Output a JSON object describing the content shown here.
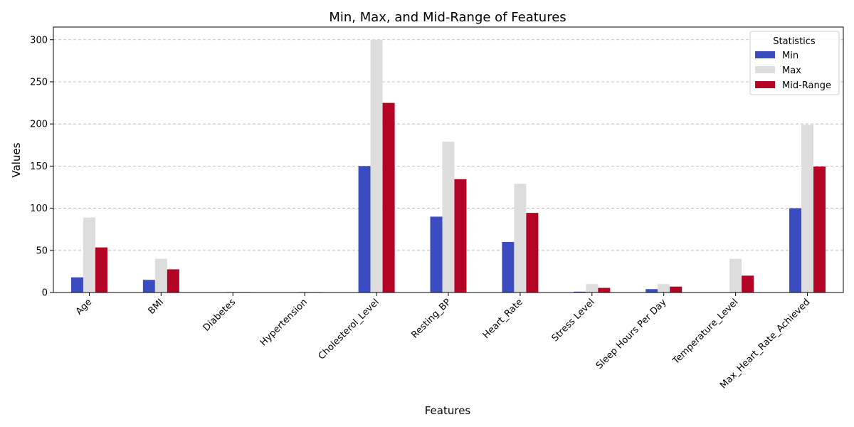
{
  "chart_data": {
    "type": "bar",
    "title": "Min, Max, and Mid-Range of Features",
    "xlabel": "Features",
    "ylabel": "Values",
    "ylim": [
      0,
      315
    ],
    "yticks": [
      0,
      50,
      100,
      150,
      200,
      250,
      300
    ],
    "grid": "horizontal dashed",
    "legend": {
      "title": "Statistics",
      "placement": "top-right"
    },
    "categories": [
      "Age",
      "BMI",
      "Diabetes",
      "Hypertension",
      "Cholesterol_Level",
      "Resting_BP",
      "Heart_Rate",
      "Stress Level",
      "Sleep Hours Per Day",
      "Temperature_Level",
      "Max_Heart_Rate_Achieved"
    ],
    "series": [
      {
        "name": "Min",
        "color": "#3b4cc0",
        "values": [
          18,
          15,
          0,
          0,
          150,
          90,
          60,
          1,
          4,
          0,
          100
        ]
      },
      {
        "name": "Max",
        "color": "#dddddd",
        "values": [
          89,
          40,
          1,
          1,
          300,
          179,
          129,
          10,
          10,
          40,
          199
        ]
      },
      {
        "name": "Mid-Range",
        "color": "#b40426",
        "values": [
          53.5,
          27.5,
          0.5,
          0.5,
          225,
          134.5,
          94.5,
          5.5,
          7,
          20,
          149.5
        ]
      }
    ]
  }
}
